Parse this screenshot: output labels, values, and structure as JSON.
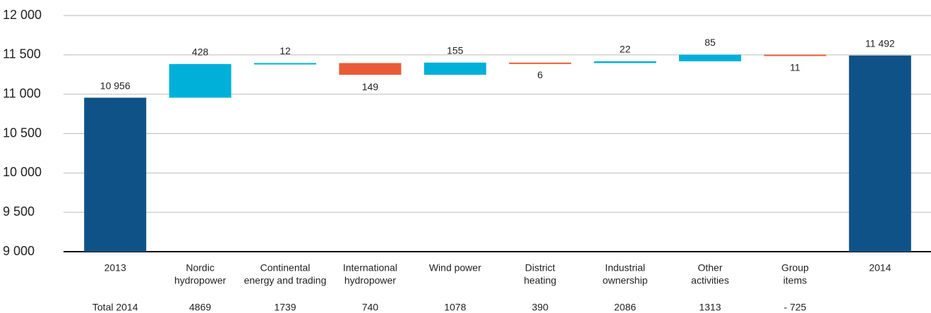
{
  "chart_data": {
    "type": "waterfall",
    "categories": [
      [
        "2013"
      ],
      [
        "Nordic",
        "hydropower"
      ],
      [
        "Continental",
        "energy and trading"
      ],
      [
        "International",
        "hydropower"
      ],
      [
        "Wind power"
      ],
      [
        "District",
        "heating"
      ],
      [
        "Industrial",
        "ownership"
      ],
      [
        "Other",
        "activities"
      ],
      [
        "Group",
        "items"
      ],
      [
        "2014"
      ]
    ],
    "values": [
      10956,
      428,
      12,
      -149,
      155,
      -6,
      22,
      85,
      -11,
      11492
    ],
    "value_labels": [
      "10 956",
      "428",
      "12",
      "149",
      "155",
      "6",
      "22",
      "85",
      "11",
      "11 492"
    ],
    "measure": [
      "total",
      "relative",
      "relative",
      "relative",
      "relative",
      "relative",
      "relative",
      "relative",
      "relative",
      "total"
    ],
    "colors": {
      "total": "#0f5287",
      "increase": "#00b0d9",
      "decrease": "#e95b36"
    },
    "footer_row": [
      "Total 2014",
      "4869",
      "1739",
      "740",
      "1078",
      "390",
      "2086",
      "1313",
      "- 725"
    ],
    "ylim": [
      9000,
      12000
    ],
    "yticks": [
      {
        "value": 9000,
        "label": "9 000"
      },
      {
        "value": 9500,
        "label": "9 500"
      },
      {
        "value": 10000,
        "label": "10 000"
      },
      {
        "value": 10500,
        "label": "10 500"
      },
      {
        "value": 11000,
        "label": "11 000"
      },
      {
        "value": 11500,
        "label": "11 500"
      },
      {
        "value": 12000,
        "label": "12 000"
      }
    ],
    "grid": true
  }
}
